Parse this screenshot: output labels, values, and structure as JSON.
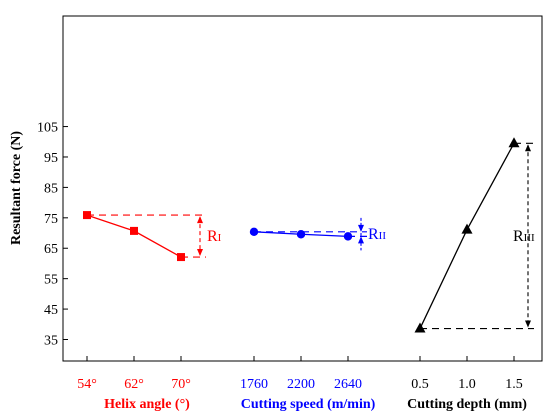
{
  "chart_data": {
    "type": "line",
    "ylabel": "Resultant force (N)",
    "ylim": [
      35,
      105
    ],
    "yticks": [
      35,
      45,
      55,
      65,
      75,
      85,
      95,
      105
    ],
    "grid": false,
    "legend": "none",
    "panels": [
      {
        "xlabel": "Helix angle (°)",
        "color": "#ff0000",
        "marker": "square",
        "categories": [
          "54°",
          "62°",
          "70°"
        ],
        "values": [
          75.9,
          70.7,
          62.1
        ],
        "range_label": {
          "prefix": "R",
          "sub": "I"
        }
      },
      {
        "xlabel": "Cutting speed (m/min)",
        "color": "#0000ff",
        "marker": "circle",
        "categories": [
          "1760",
          "2200",
          "2640"
        ],
        "values": [
          70.4,
          69.6,
          68.9
        ],
        "range_label": {
          "prefix": "R",
          "sub": "II"
        }
      },
      {
        "xlabel": "Cutting depth (mm)",
        "color": "#000000",
        "marker": "triangle",
        "categories": [
          "0.5",
          "1.0",
          "1.5"
        ],
        "values": [
          38.6,
          71.1,
          99.5
        ],
        "range_label": {
          "prefix": "R",
          "sub": "III"
        }
      }
    ]
  }
}
